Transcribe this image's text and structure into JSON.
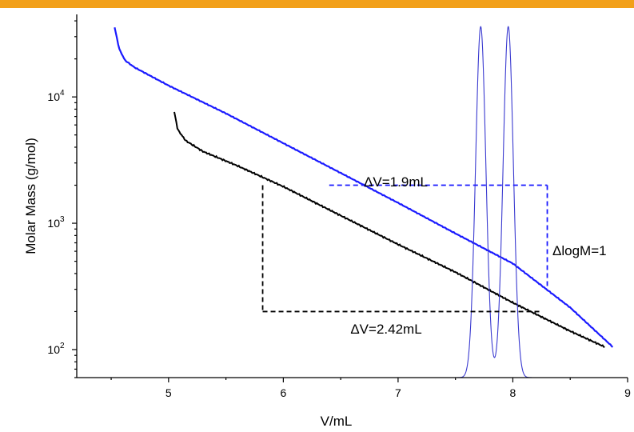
{
  "accent_color": "#f2a01a",
  "chart_data": {
    "type": "line",
    "xlabel": "V/mL",
    "ylabel": "Molar Mass (g/mol)",
    "xlim": [
      4.2,
      9.0
    ],
    "ylim": [
      60,
      45000
    ],
    "y_scale": "log",
    "x_ticks": [
      "5",
      "6",
      "7",
      "8",
      "9"
    ],
    "y_ticks": [
      {
        "base": "10",
        "exp": "4",
        "value": 10000
      },
      {
        "base": "10",
        "exp": "3",
        "value": 1000
      },
      {
        "base": "10",
        "exp": "2",
        "value": 100
      }
    ],
    "series": [
      {
        "color": "#1a1aff",
        "x": [
          4.53,
          4.57,
          4.62,
          4.7,
          5.0,
          5.5,
          6.0,
          6.5,
          7.0,
          7.5,
          8.0,
          8.5,
          8.87
        ],
        "y": [
          35500,
          24000,
          19500,
          17200,
          12300,
          7400,
          4300,
          2500,
          1450,
          830,
          480,
          215,
          105
        ]
      },
      {
        "color": "#000000",
        "x": [
          5.05,
          5.08,
          5.15,
          5.3,
          5.6,
          6.0,
          6.5,
          7.0,
          7.5,
          8.0,
          8.5,
          8.8
        ],
        "y": [
          7600,
          5500,
          4500,
          3700,
          2850,
          1950,
          1150,
          680,
          410,
          235,
          140,
          105
        ]
      },
      {
        "color": "#3a3ad0",
        "peaks": [
          {
            "center": 7.72,
            "height": 36000,
            "width": 0.045
          },
          {
            "center": 7.96,
            "height": 36000,
            "width": 0.045
          }
        ],
        "baseline": 60
      }
    ],
    "annotations": [
      {
        "text": "ΔV=1.9mL",
        "color": "#1a1aff",
        "x1": 6.4,
        "x2": 8.3,
        "y_top": 2000,
        "y_bottom": 300
      },
      {
        "text": "ΔlogM=1"
      },
      {
        "text": "ΔV=2.42mL",
        "color": "#000000",
        "x1": 5.82,
        "x2": 8.24,
        "y_top": 2000,
        "y_bottom": 200
      }
    ]
  }
}
